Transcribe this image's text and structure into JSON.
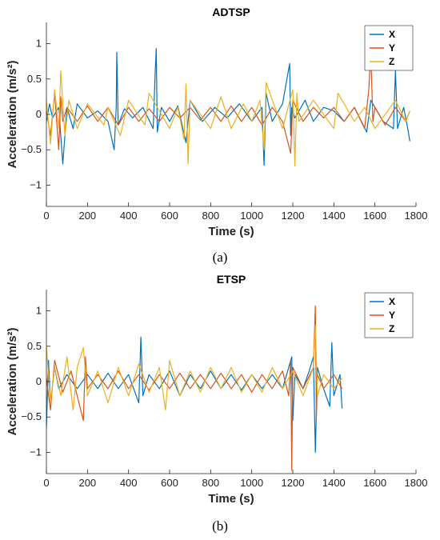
{
  "captions": [
    "(a)",
    "(b)"
  ],
  "chart_data": [
    {
      "type": "line",
      "title": "ADTSP",
      "xlabel": "Time (s)",
      "ylabel": "Acceleration (m/s²)",
      "xlim": [
        0,
        1800
      ],
      "ylim": [
        -1.3,
        1.3
      ],
      "xticks": [
        0,
        200,
        400,
        600,
        800,
        1000,
        1200,
        1400,
        1600,
        1800
      ],
      "yticks": [
        -1,
        -0.5,
        0,
        0.5,
        1
      ],
      "legend": "top-right",
      "series": [
        {
          "name": "X",
          "color": "#0072BD",
          "x": [
            0,
            15,
            30,
            60,
            80,
            100,
            130,
            150,
            200,
            250,
            300,
            330,
            340,
            343,
            350,
            380,
            420,
            470,
            520,
            530,
            535,
            540,
            560,
            600,
            640,
            680,
            700,
            760,
            820,
            880,
            940,
            1000,
            1050,
            1060,
            1070,
            1100,
            1150,
            1185,
            1190,
            1195,
            1210,
            1260,
            1300,
            1350,
            1400,
            1450,
            1500,
            1560,
            1580,
            1640,
            1690,
            1700,
            1710,
            1740,
            1760,
            1770
          ],
          "y": [
            -0.1,
            0.15,
            -0.05,
            0.1,
            -0.7,
            0.1,
            -0.2,
            0.15,
            -0.05,
            0.05,
            -0.1,
            -0.5,
            0.1,
            0.88,
            -0.15,
            0.08,
            -0.05,
            0.1,
            -0.2,
            0.6,
            0.93,
            -0.25,
            0.1,
            -0.1,
            0.12,
            -0.4,
            0.2,
            -0.1,
            0.1,
            -0.05,
            0.15,
            -0.1,
            0.1,
            -0.72,
            0.3,
            -0.1,
            0.15,
            0.72,
            -0.3,
            0.1,
            -0.05,
            0.2,
            -0.1,
            0.1,
            0.05,
            -0.1,
            0.1,
            -0.25,
            0.2,
            -0.1,
            -0.2,
            0.62,
            -0.2,
            0.1,
            -0.2,
            -0.38
          ]
        },
        {
          "name": "Y",
          "color": "#D95319",
          "x": [
            0,
            20,
            40,
            60,
            70,
            80,
            100,
            150,
            200,
            250,
            300,
            350,
            400,
            450,
            500,
            550,
            600,
            650,
            700,
            750,
            800,
            850,
            900,
            950,
            1000,
            1050,
            1100,
            1150,
            1190,
            1200,
            1250,
            1300,
            1350,
            1400,
            1450,
            1500,
            1550,
            1570,
            1580,
            1590,
            1600,
            1650,
            1700,
            1750,
            1770
          ],
          "y": [
            0.05,
            -0.3,
            0.3,
            -0.5,
            0.25,
            -0.1,
            0.1,
            -0.1,
            0.12,
            -0.1,
            0.1,
            -0.15,
            0.1,
            -0.1,
            0.08,
            -0.1,
            0.1,
            -0.05,
            0.1,
            -0.08,
            0.1,
            -0.1,
            0.12,
            -0.1,
            0.1,
            -0.15,
            0.1,
            -0.1,
            -0.55,
            0.2,
            -0.1,
            0.1,
            -0.05,
            0.1,
            -0.1,
            0.1,
            -0.2,
            0.35,
            0.88,
            -0.1,
            0.1,
            -0.15,
            0.1,
            -0.1,
            0.05
          ]
        },
        {
          "name": "Z",
          "color": "#EDB120",
          "x": [
            0,
            20,
            40,
            60,
            70,
            90,
            110,
            150,
            200,
            280,
            300,
            360,
            400,
            480,
            500,
            600,
            640,
            670,
            680,
            690,
            700,
            800,
            850,
            900,
            960,
            1000,
            1040,
            1060,
            1070,
            1150,
            1200,
            1210,
            1220,
            1230,
            1300,
            1400,
            1420,
            1500,
            1550,
            1600,
            1700,
            1750,
            1770
          ],
          "y": [
            0.2,
            -0.42,
            0.35,
            -0.2,
            0.62,
            -0.3,
            0.2,
            -0.2,
            0.15,
            -0.15,
            0.1,
            -0.3,
            0.2,
            -0.15,
            0.3,
            -0.2,
            0.1,
            -0.35,
            0.43,
            -0.7,
            0.2,
            -0.2,
            0.25,
            -0.2,
            0.15,
            -0.1,
            0.2,
            -0.5,
            0.45,
            -0.2,
            0.35,
            -0.73,
            0.3,
            -0.1,
            0.2,
            -0.2,
            0.3,
            -0.1,
            0.1,
            -0.2,
            0.2,
            -0.1,
            0.05
          ]
        }
      ]
    },
    {
      "type": "line",
      "title": "ETSP",
      "xlabel": "Time (s)",
      "ylabel": "Acceleration (m/s²)",
      "xlim": [
        0,
        1800
      ],
      "ylim": [
        -1.3,
        1.3
      ],
      "xticks": [
        0,
        200,
        400,
        600,
        800,
        1000,
        1200,
        1400,
        1600,
        1800
      ],
      "yticks": [
        -1,
        -0.5,
        0,
        0.5,
        1
      ],
      "legend": "top-right",
      "series": [
        {
          "name": "X",
          "color": "#0072BD",
          "x": [
            0,
            10,
            20,
            40,
            60,
            100,
            150,
            200,
            250,
            300,
            350,
            400,
            450,
            460,
            470,
            500,
            550,
            600,
            650,
            700,
            750,
            800,
            850,
            900,
            950,
            1000,
            1050,
            1100,
            1150,
            1180,
            1195,
            1200,
            1210,
            1250,
            1280,
            1300,
            1310,
            1320,
            1350,
            1380,
            1390,
            1400,
            1430,
            1440
          ],
          "y": [
            -0.65,
            0.3,
            -0.3,
            0.2,
            -0.1,
            0.1,
            -0.1,
            0.1,
            -0.1,
            0.12,
            -0.1,
            0.1,
            -0.3,
            0.63,
            -0.2,
            0.1,
            -0.1,
            0.15,
            -0.2,
            0.1,
            -0.1,
            0.15,
            -0.1,
            0.1,
            -0.12,
            0.1,
            -0.1,
            0.1,
            -0.1,
            0.2,
            0.35,
            -0.55,
            0.1,
            -0.1,
            0.15,
            0.35,
            -1.0,
            0.2,
            -0.1,
            -0.35,
            0.55,
            -0.2,
            0.1,
            -0.38
          ]
        },
        {
          "name": "Y",
          "color": "#D95319",
          "x": [
            0,
            20,
            40,
            80,
            120,
            180,
            190,
            200,
            250,
            300,
            350,
            400,
            450,
            500,
            550,
            600,
            650,
            700,
            750,
            800,
            850,
            900,
            950,
            1000,
            1050,
            1100,
            1150,
            1180,
            1190,
            1195,
            1200,
            1250,
            1300,
            1310,
            1315,
            1320,
            1350,
            1400,
            1440
          ],
          "y": [
            0.05,
            -0.4,
            0.3,
            -0.15,
            0.15,
            -0.55,
            0.35,
            -0.1,
            0.1,
            -0.1,
            0.15,
            -0.1,
            0.1,
            -0.12,
            0.1,
            -0.1,
            0.12,
            -0.1,
            0.1,
            -0.1,
            0.12,
            -0.1,
            0.1,
            -0.15,
            0.1,
            -0.1,
            0.15,
            -0.2,
            0.3,
            -1.25,
            0.2,
            -0.1,
            0.2,
            1.07,
            -0.5,
            0.1,
            -0.1,
            0.1,
            -0.1
          ]
        },
        {
          "name": "Z",
          "color": "#EDB120",
          "x": [
            0,
            20,
            40,
            70,
            100,
            130,
            150,
            180,
            200,
            250,
            300,
            350,
            400,
            450,
            500,
            550,
            580,
            600,
            650,
            700,
            750,
            800,
            850,
            900,
            950,
            1000,
            1050,
            1100,
            1150,
            1200,
            1250,
            1300,
            1310,
            1320,
            1350,
            1400,
            1440
          ],
          "y": [
            0.5,
            -0.3,
            0.2,
            -0.2,
            0.35,
            -0.4,
            0.2,
            0.48,
            -0.2,
            0.15,
            -0.3,
            0.2,
            -0.2,
            0.25,
            -0.15,
            0.2,
            -0.4,
            0.3,
            -0.2,
            0.15,
            -0.15,
            0.2,
            -0.1,
            0.2,
            -0.15,
            0.1,
            -0.15,
            0.2,
            -0.1,
            0.15,
            -0.2,
            0.2,
            0.8,
            -0.2,
            0.1,
            -0.1,
            0.05
          ]
        }
      ]
    }
  ]
}
